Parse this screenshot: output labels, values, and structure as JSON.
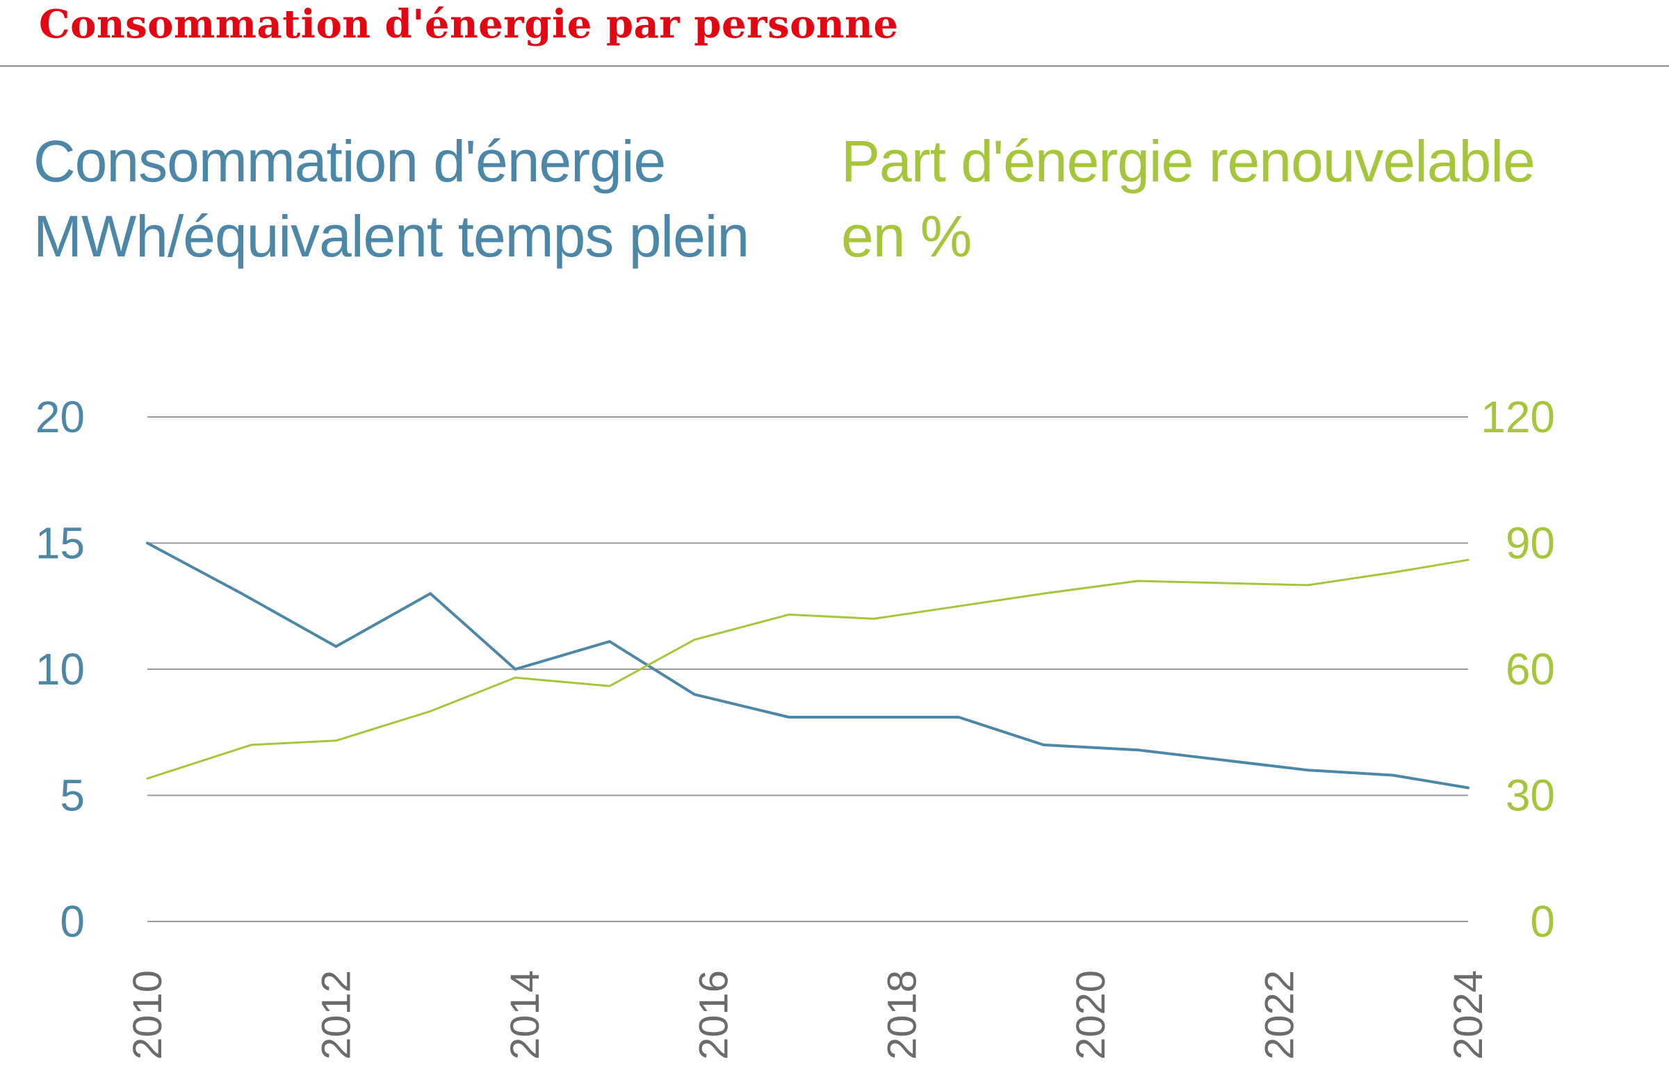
{
  "page_title": "Consommation d'énergie par personne",
  "left_heading": {
    "line1": "Consommation d'énergie",
    "line2": "MWh/équivalent temps plein"
  },
  "right_heading": {
    "line1": "Part d'énergie renouvelable",
    "line2": "en %"
  },
  "chart_data": {
    "type": "line",
    "grid": true,
    "x_ticks": [
      "2010",
      "2012",
      "2014",
      "2016",
      "2018",
      "2020",
      "2022",
      "2024"
    ],
    "left_axis": {
      "ylim": [
        0,
        20
      ],
      "ticks": [
        "0",
        "5",
        "10",
        "15",
        "20"
      ],
      "color": "#4d87a7"
    },
    "right_axis": {
      "ylim": [
        0,
        120
      ],
      "ticks": [
        "0",
        "30",
        "60",
        "90",
        "120"
      ],
      "color": "#a5c63b"
    },
    "series": [
      {
        "axis": "left",
        "color": "#4d87a7",
        "points": [
          [
            2010,
            15.0
          ],
          [
            2011,
            13.0
          ],
          [
            2012,
            10.9
          ],
          [
            2013,
            13.0
          ],
          [
            2013.9,
            10.0
          ],
          [
            2014.9,
            11.1
          ],
          [
            2015.8,
            9.0
          ],
          [
            2016.8,
            8.1
          ],
          [
            2017.7,
            8.1
          ],
          [
            2018.6,
            8.1
          ],
          [
            2019.5,
            7.0
          ],
          [
            2020.5,
            6.8
          ],
          [
            2021.4,
            6.4
          ],
          [
            2022.3,
            6.0
          ],
          [
            2023.2,
            5.8
          ],
          [
            2024,
            5.3
          ]
        ]
      },
      {
        "axis": "right",
        "color": "#a5c63b",
        "points": [
          [
            2010,
            34
          ],
          [
            2011.1,
            42
          ],
          [
            2012,
            43
          ],
          [
            2013,
            50
          ],
          [
            2013.9,
            58
          ],
          [
            2014.9,
            56
          ],
          [
            2015.8,
            67
          ],
          [
            2016.8,
            73
          ],
          [
            2017.7,
            72
          ],
          [
            2018.6,
            75
          ],
          [
            2019.5,
            78
          ],
          [
            2020.5,
            81
          ],
          [
            2021.4,
            80.5
          ],
          [
            2022.3,
            80
          ],
          [
            2023.2,
            83
          ],
          [
            2024,
            86
          ]
        ]
      }
    ]
  }
}
